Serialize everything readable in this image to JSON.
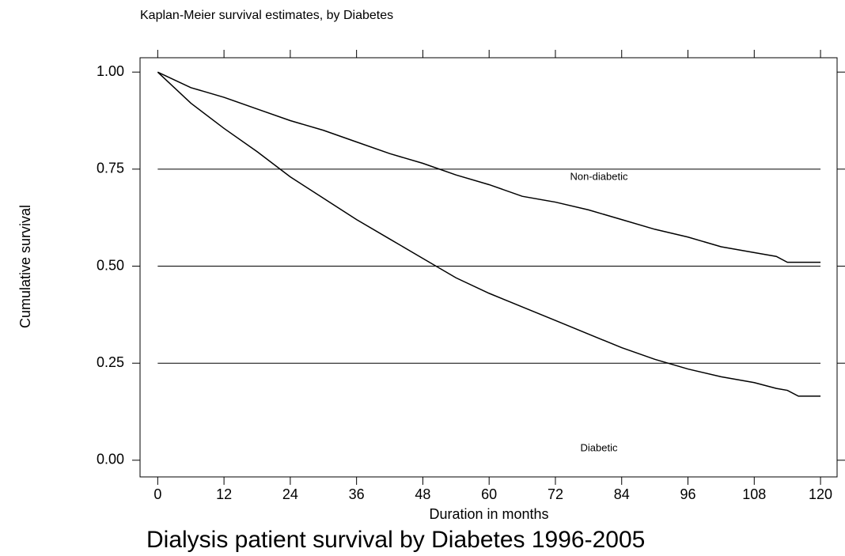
{
  "chart_data": {
    "type": "line",
    "title": "Kaplan-Meier survival estimates, by Diabetes",
    "caption": "Dialysis patient survival by Diabetes 1996-2005",
    "x_label": "Duration in months",
    "y_label": "Cumulative survival",
    "annotations": [
      "Non-diabetic",
      "Diabetic"
    ],
    "x": [
      0,
      6,
      12,
      18,
      24,
      30,
      36,
      42,
      48,
      54,
      60,
      66,
      72,
      78,
      84,
      90,
      96,
      102,
      108,
      112,
      114,
      116,
      120
    ],
    "series": [
      {
        "color": "#000000",
        "values": [
          1.0,
          0.96,
          0.935,
          0.905,
          0.875,
          0.85,
          0.82,
          0.79,
          0.765,
          0.735,
          0.71,
          0.68,
          0.665,
          0.645,
          0.62,
          0.595,
          0.575,
          0.55,
          0.535,
          0.525,
          0.51,
          0.51,
          0.51
        ]
      },
      {
        "color": "#000000",
        "values": [
          1.0,
          0.92,
          0.855,
          0.795,
          0.73,
          0.675,
          0.62,
          0.57,
          0.52,
          0.47,
          0.43,
          0.395,
          0.36,
          0.325,
          0.29,
          0.26,
          0.235,
          0.215,
          0.2,
          0.185,
          0.18,
          0.165,
          0.165
        ]
      }
    ],
    "xlim": [
      -3.2,
      123
    ],
    "xticks": [
      0,
      12,
      24,
      36,
      48,
      60,
      72,
      84,
      96,
      108,
      120
    ],
    "ylim": [
      -0.043,
      1.037
    ],
    "yticks": [
      {
        "value": 0,
        "label": "0.00"
      },
      {
        "value": 0.25,
        "label": "0.25"
      },
      {
        "value": 0.5,
        "label": "0.50"
      },
      {
        "value": 0.75,
        "label": "0.75"
      },
      {
        "value": 1,
        "label": "1.00"
      }
    ],
    "grid": true
  }
}
